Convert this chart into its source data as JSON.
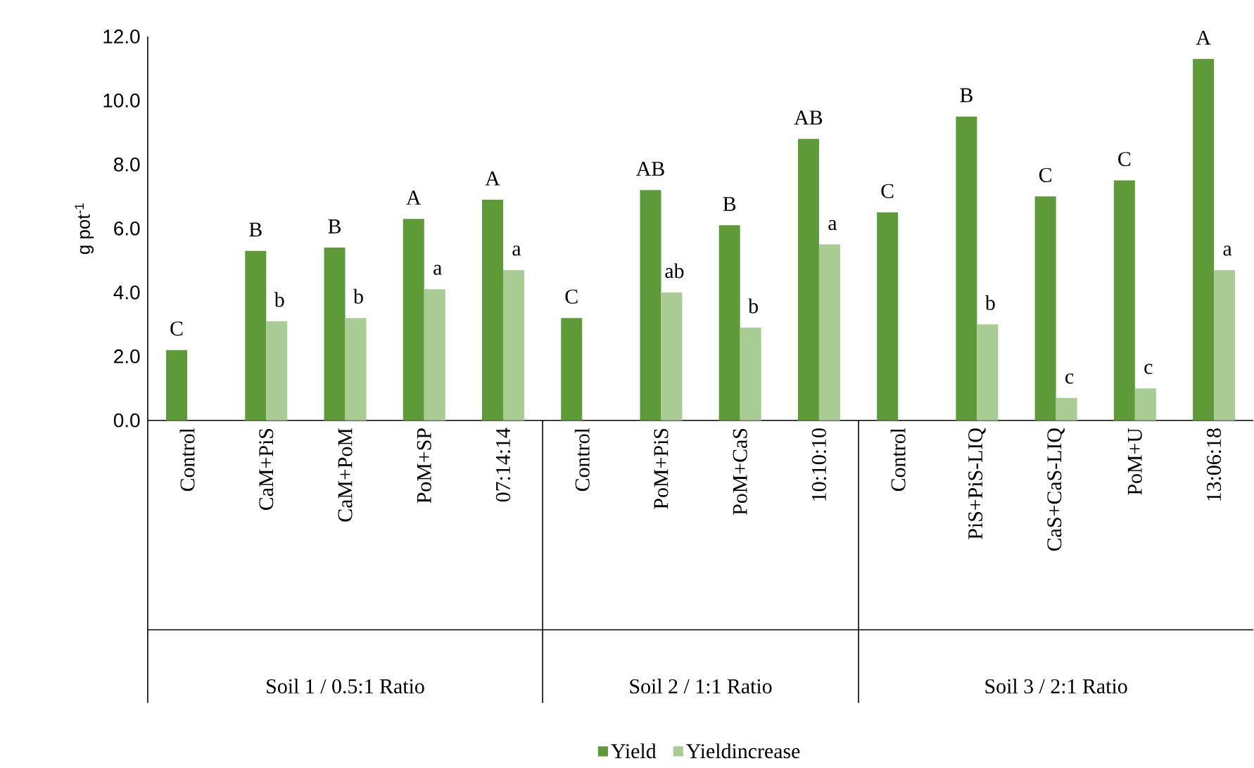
{
  "chart_data": {
    "type": "bar",
    "ylabel": "g pot$^{-1}$",
    "categories": [
      "Control",
      "CaM+PiS",
      "CaM+PoM",
      "PoM+SP",
      "07:14:14",
      "Control",
      "PoM+PiS",
      "PoM+CaS",
      "10:10:10",
      "Control",
      "PiS+PiS-LIQ",
      "CaS+CaS-LIQ",
      "PoM+U",
      "13:06:18"
    ],
    "series": [
      {
        "name": "Yield",
        "color": "#5e9a38",
        "values": [
          2.2,
          5.3,
          5.4,
          6.3,
          6.9,
          3.2,
          7.2,
          6.1,
          8.8,
          6.5,
          9.5,
          7.0,
          7.5,
          11.3
        ],
        "value_labels": [
          "C",
          "B",
          "B",
          "A",
          "A",
          "C",
          "AB",
          "B",
          "AB",
          "C",
          "B",
          "C",
          "C",
          "A"
        ]
      },
      {
        "name": "Yieldincrease",
        "color": "#a9cc95",
        "values": [
          null,
          3.1,
          3.2,
          4.1,
          4.7,
          null,
          4.0,
          2.9,
          5.5,
          null,
          3.0,
          0.7,
          1.0,
          4.7
        ],
        "value_labels": [
          null,
          "b",
          "b",
          "a",
          "a",
          null,
          "ab",
          "b",
          "a",
          null,
          "b",
          "c",
          "c",
          "a"
        ]
      }
    ],
    "annotations": [
      "Soil 1 / 0.5:1 Ratio",
      "Soil 2 / 1:1 Ratio",
      "Soil 3 / 2:1 Ratio"
    ],
    "ylim": [
      0,
      12
    ],
    "yticks": [
      {
        "value": 0,
        "label": "0.0"
      },
      {
        "value": 2,
        "label": "2.0"
      },
      {
        "value": 4,
        "label": "4.0"
      },
      {
        "value": 6,
        "label": "6.0"
      },
      {
        "value": 8,
        "label": "8.0"
      },
      {
        "value": 10,
        "label": "10.0"
      },
      {
        "value": 12,
        "label": "12.0"
      }
    ],
    "grid": false,
    "legend": "bottom"
  }
}
